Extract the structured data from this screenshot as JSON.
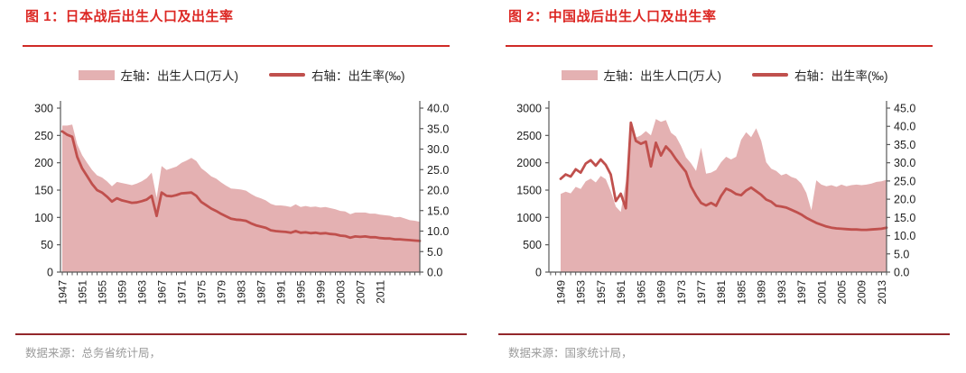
{
  "colors": {
    "area": "#e4b1b2",
    "line": "#c0504d",
    "title_red": "#dc2723",
    "title_underline": "#cf2a26",
    "bottom_rule": "#93272b",
    "source_text": "#9b9b9b",
    "axis": "#595959",
    "tick_label": "#1f1f1f"
  },
  "panels": [
    {
      "title": "图 1：日本战后出生人口及出生率",
      "legend": {
        "area_label": "左轴：出生人口(万人)",
        "line_label": "右轴：出生率(‰)"
      },
      "source": "数据来源：总务省统计局，"
    },
    {
      "title": "图 2：中国战后出生人口及出生率",
      "legend": {
        "area_label": "左轴：出生人口(万人)",
        "line_label": "右轴：出生率(‰)"
      },
      "source": "数据来源：国家统计局，"
    }
  ],
  "chart_data": [
    {
      "type": "area",
      "title": "图 1：日本战后出生人口及出生率",
      "xlabel": "",
      "ylabel_left": "出生人口(万人)",
      "ylabel_right": "出生率(‰)",
      "grid": false,
      "legend_position": "top",
      "x": [
        1947,
        1948,
        1949,
        1950,
        1951,
        1952,
        1953,
        1954,
        1955,
        1956,
        1957,
        1958,
        1959,
        1960,
        1961,
        1962,
        1963,
        1964,
        1965,
        1966,
        1967,
        1968,
        1969,
        1970,
        1971,
        1972,
        1973,
        1974,
        1975,
        1976,
        1977,
        1978,
        1979,
        1980,
        1981,
        1982,
        1983,
        1984,
        1985,
        1986,
        1987,
        1988,
        1989,
        1990,
        1991,
        1992,
        1993,
        1994,
        1995,
        1996,
        1997,
        1998,
        1999,
        2000,
        2001,
        2002,
        2003,
        2004,
        2005,
        2006,
        2007,
        2008,
        2009,
        2010,
        2011,
        2012,
        2013,
        2014,
        2015,
        2016,
        2017,
        2018,
        2019
      ],
      "x_tick_labels": [
        "1947",
        "1951",
        "1955",
        "1959",
        "1963",
        "1967",
        "1971",
        "1975",
        "1979",
        "1983",
        "1987",
        "1991",
        "1995",
        "1999",
        "2003",
        "2007",
        "2011"
      ],
      "left_axis": {
        "min": 0,
        "max": 300,
        "ticks": [
          "0",
          "50",
          "100",
          "150",
          "200",
          "250",
          "300"
        ]
      },
      "right_axis": {
        "min": 0,
        "max": 40,
        "ticks": [
          "0.0",
          "5.0",
          "10.0",
          "15.0",
          "20.0",
          "25.0",
          "30.0",
          "35.0",
          "40.0"
        ]
      },
      "series": [
        {
          "name": "左轴：出生人口(万人)",
          "type": "area",
          "axis": "left",
          "values": [
            268,
            268,
            270,
            234,
            214,
            200,
            187,
            177,
            173,
            166,
            157,
            165,
            163,
            161,
            159,
            162,
            166,
            172,
            182,
            136,
            194,
            187,
            190,
            193,
            200,
            204,
            209,
            203,
            190,
            183,
            175,
            171,
            164,
            158,
            153,
            152,
            151,
            149,
            143,
            138,
            135,
            131,
            125,
            122,
            122,
            121,
            119,
            124,
            119,
            121,
            119,
            120,
            118,
            119,
            117,
            115,
            112,
            111,
            106,
            109,
            109,
            109,
            107,
            107,
            105,
            104,
            103,
            100,
            101,
            98,
            95,
            94,
            92
          ]
        },
        {
          "name": "右轴：出生率(‰)",
          "type": "line",
          "axis": "right",
          "values": [
            34.3,
            33.5,
            33.0,
            28.1,
            25.3,
            23.4,
            21.5,
            20.0,
            19.4,
            18.4,
            17.2,
            18.0,
            17.5,
            17.2,
            16.9,
            17.0,
            17.3,
            17.7,
            18.6,
            13.7,
            19.4,
            18.6,
            18.5,
            18.8,
            19.2,
            19.3,
            19.4,
            18.6,
            17.1,
            16.3,
            15.5,
            14.9,
            14.2,
            13.6,
            13.0,
            12.8,
            12.7,
            12.5,
            11.9,
            11.4,
            11.1,
            10.8,
            10.2,
            10.0,
            9.9,
            9.8,
            9.6,
            10.0,
            9.6,
            9.7,
            9.5,
            9.6,
            9.4,
            9.5,
            9.3,
            9.2,
            8.9,
            8.8,
            8.4,
            8.7,
            8.6,
            8.7,
            8.5,
            8.5,
            8.3,
            8.2,
            8.2,
            8.0,
            8.0,
            7.9,
            7.8,
            7.7,
            7.6
          ]
        }
      ]
    },
    {
      "type": "area",
      "title": "图 2：中国战后出生人口及出生率",
      "xlabel": "",
      "ylabel_left": "出生人口(万人)",
      "ylabel_right": "出生率(‰)",
      "grid": false,
      "legend_position": "top",
      "x": [
        1949,
        1950,
        1951,
        1952,
        1953,
        1954,
        1955,
        1956,
        1957,
        1958,
        1959,
        1960,
        1961,
        1962,
        1963,
        1964,
        1965,
        1966,
        1967,
        1968,
        1969,
        1970,
        1971,
        1972,
        1973,
        1974,
        1975,
        1976,
        1977,
        1978,
        1979,
        1980,
        1981,
        1982,
        1983,
        1984,
        1985,
        1986,
        1987,
        1988,
        1989,
        1990,
        1991,
        1992,
        1993,
        1994,
        1995,
        1996,
        1997,
        1998,
        1999,
        2000,
        2001,
        2002,
        2003,
        2004,
        2005,
        2006,
        2007,
        2008,
        2009,
        2010,
        2011,
        2012,
        2013,
        2014
      ],
      "x_tick_labels": [
        "1949",
        "1953",
        "1957",
        "1961",
        "1965",
        "1969",
        "1973",
        "1977",
        "1981",
        "1985",
        "1989",
        "1993",
        "1997",
        "2001",
        "2005",
        "2009",
        "2013"
      ],
      "left_axis": {
        "min": 0,
        "max": 3000,
        "ticks": [
          "0",
          "500",
          "1000",
          "1500",
          "2000",
          "2500",
          "3000"
        ]
      },
      "right_axis": {
        "min": 0,
        "max": 45,
        "ticks": [
          "0.0",
          "5.0",
          "10.0",
          "15.0",
          "20.0",
          "25.0",
          "30.0",
          "35.0",
          "40.0",
          "45.0"
        ]
      },
      "series": [
        {
          "name": "左轴：出生人口(万人)",
          "type": "area",
          "axis": "left",
          "values": [
            1430,
            1470,
            1440,
            1560,
            1520,
            1660,
            1710,
            1640,
            1760,
            1700,
            1480,
            1200,
            1100,
            1650,
            2650,
            2460,
            2500,
            2580,
            2500,
            2800,
            2750,
            2780,
            2550,
            2480,
            2310,
            2100,
            1990,
            1850,
            2280,
            1800,
            1820,
            1870,
            2010,
            2110,
            2060,
            2110,
            2420,
            2560,
            2470,
            2630,
            2400,
            2010,
            1890,
            1850,
            1770,
            1800,
            1740,
            1710,
            1620,
            1450,
            1130,
            1680,
            1600,
            1570,
            1590,
            1560,
            1600,
            1570,
            1590,
            1600,
            1590,
            1600,
            1620,
            1650,
            1660,
            1690
          ]
        },
        {
          "name": "右轴：出生率(‰)",
          "type": "line",
          "axis": "right",
          "values": [
            25.6,
            26.8,
            26.2,
            28.2,
            27.3,
            29.8,
            30.7,
            29.2,
            30.9,
            29.4,
            26.8,
            19.5,
            21.5,
            17.5,
            41.0,
            36.0,
            35.2,
            35.8,
            29.0,
            35.5,
            32.0,
            34.5,
            33.0,
            31.0,
            29.2,
            27.5,
            23.5,
            21.0,
            19.0,
            18.3,
            19.0,
            18.2,
            20.9,
            22.9,
            22.3,
            21.4,
            21.1,
            22.4,
            23.2,
            22.2,
            21.2,
            19.9,
            19.3,
            18.2,
            18.0,
            17.7,
            17.1,
            16.5,
            15.8,
            14.9,
            14.2,
            13.5,
            13.0,
            12.5,
            12.2,
            12.0,
            11.9,
            11.8,
            11.7,
            11.7,
            11.6,
            11.6,
            11.7,
            11.8,
            11.9,
            12.2
          ]
        }
      ]
    }
  ]
}
